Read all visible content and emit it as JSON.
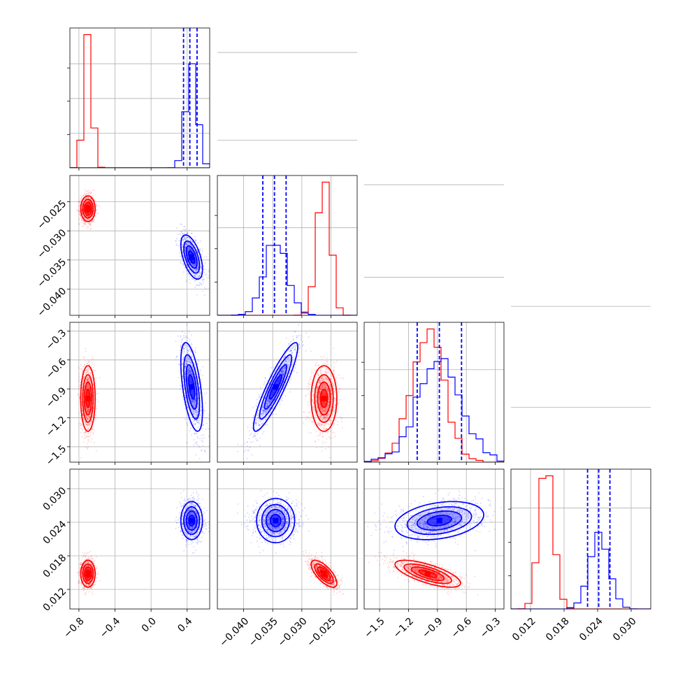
{
  "chart_data": {
    "type": "scatter",
    "subtype": "corner-plot",
    "title": "",
    "parameters": [
      {
        "ticks": [
          -0.8,
          -0.4,
          0.0,
          0.4
        ],
        "tick_labels": [
          "−0.8",
          "−0.4",
          "0.0",
          "0.4"
        ],
        "range": [
          -0.9,
          0.65
        ]
      },
      {
        "ticks": [
          -0.04,
          -0.035,
          -0.03,
          -0.025
        ],
        "tick_labels": [
          "−0.040",
          "−0.035",
          "−0.030",
          "−0.025"
        ],
        "range": [
          -0.0445,
          -0.0205
        ]
      },
      {
        "ticks": [
          -1.5,
          -1.2,
          -0.9,
          -0.6,
          -0.3
        ],
        "tick_labels": [
          "−1.5",
          "−1.2",
          "−0.9",
          "−0.6",
          "−0.3"
        ],
        "range": [
          -1.66,
          -0.21
        ]
      },
      {
        "ticks": [
          0.012,
          0.018,
          0.024,
          0.03
        ],
        "tick_labels": [
          "0.012",
          "0.018",
          "0.024",
          "0.030"
        ],
        "range": [
          0.0085,
          0.0335
        ]
      }
    ],
    "series": [
      {
        "color": "#ff0000",
        "means": [
          -0.7,
          -0.0262,
          -1.0,
          0.0148
        ],
        "stds": [
          0.04,
          0.0011,
          0.17,
          0.0012
        ],
        "corr": [
          [
            1,
            0,
            0,
            0
          ],
          [
            0,
            1,
            0,
            -0.7
          ],
          [
            0,
            0,
            1,
            -0.7
          ],
          [
            0,
            -0.7,
            -0.7,
            1
          ]
        ],
        "quantile_lines": false
      },
      {
        "color": "#0000ff",
        "means": [
          0.45,
          -0.0345,
          -0.88,
          0.0243
        ],
        "stds": [
          0.06,
          0.0019,
          0.23,
          0.0017
        ],
        "corr": [
          [
            1,
            -0.55,
            -0.55,
            0
          ],
          [
            -0.55,
            1,
            0.9,
            0
          ],
          [
            -0.55,
            0.9,
            1,
            0.3
          ],
          [
            0,
            0,
            0.3,
            1
          ]
        ],
        "quantile_lines": true,
        "quantiles": [
          [
            0.36,
            0.43,
            0.51
          ],
          [
            -0.0367,
            -0.0347,
            -0.0327
          ],
          [
            -1.11,
            -0.88,
            -0.65
          ],
          [
            0.0222,
            0.0242,
            0.0262
          ]
        ]
      }
    ],
    "histogram_peaks": [
      [
        {
          "series": 0,
          "x": -0.73,
          "count": 960
        },
        {
          "series": 1,
          "x": 0.47,
          "count": 750
        }
      ],
      [
        {
          "series": 0,
          "x": -0.0262,
          "count": 380
        },
        {
          "series": 1,
          "x": -0.0347,
          "count": 200
        }
      ],
      [
        {
          "series": 0,
          "x": -1.05,
          "count": 360
        },
        {
          "series": 1,
          "x": -0.88,
          "count": 280
        }
      ],
      [
        {
          "series": 0,
          "x": 0.0145,
          "count": 330
        },
        {
          "series": 1,
          "x": 0.0245,
          "count": 190
        }
      ]
    ],
    "grid": true
  }
}
